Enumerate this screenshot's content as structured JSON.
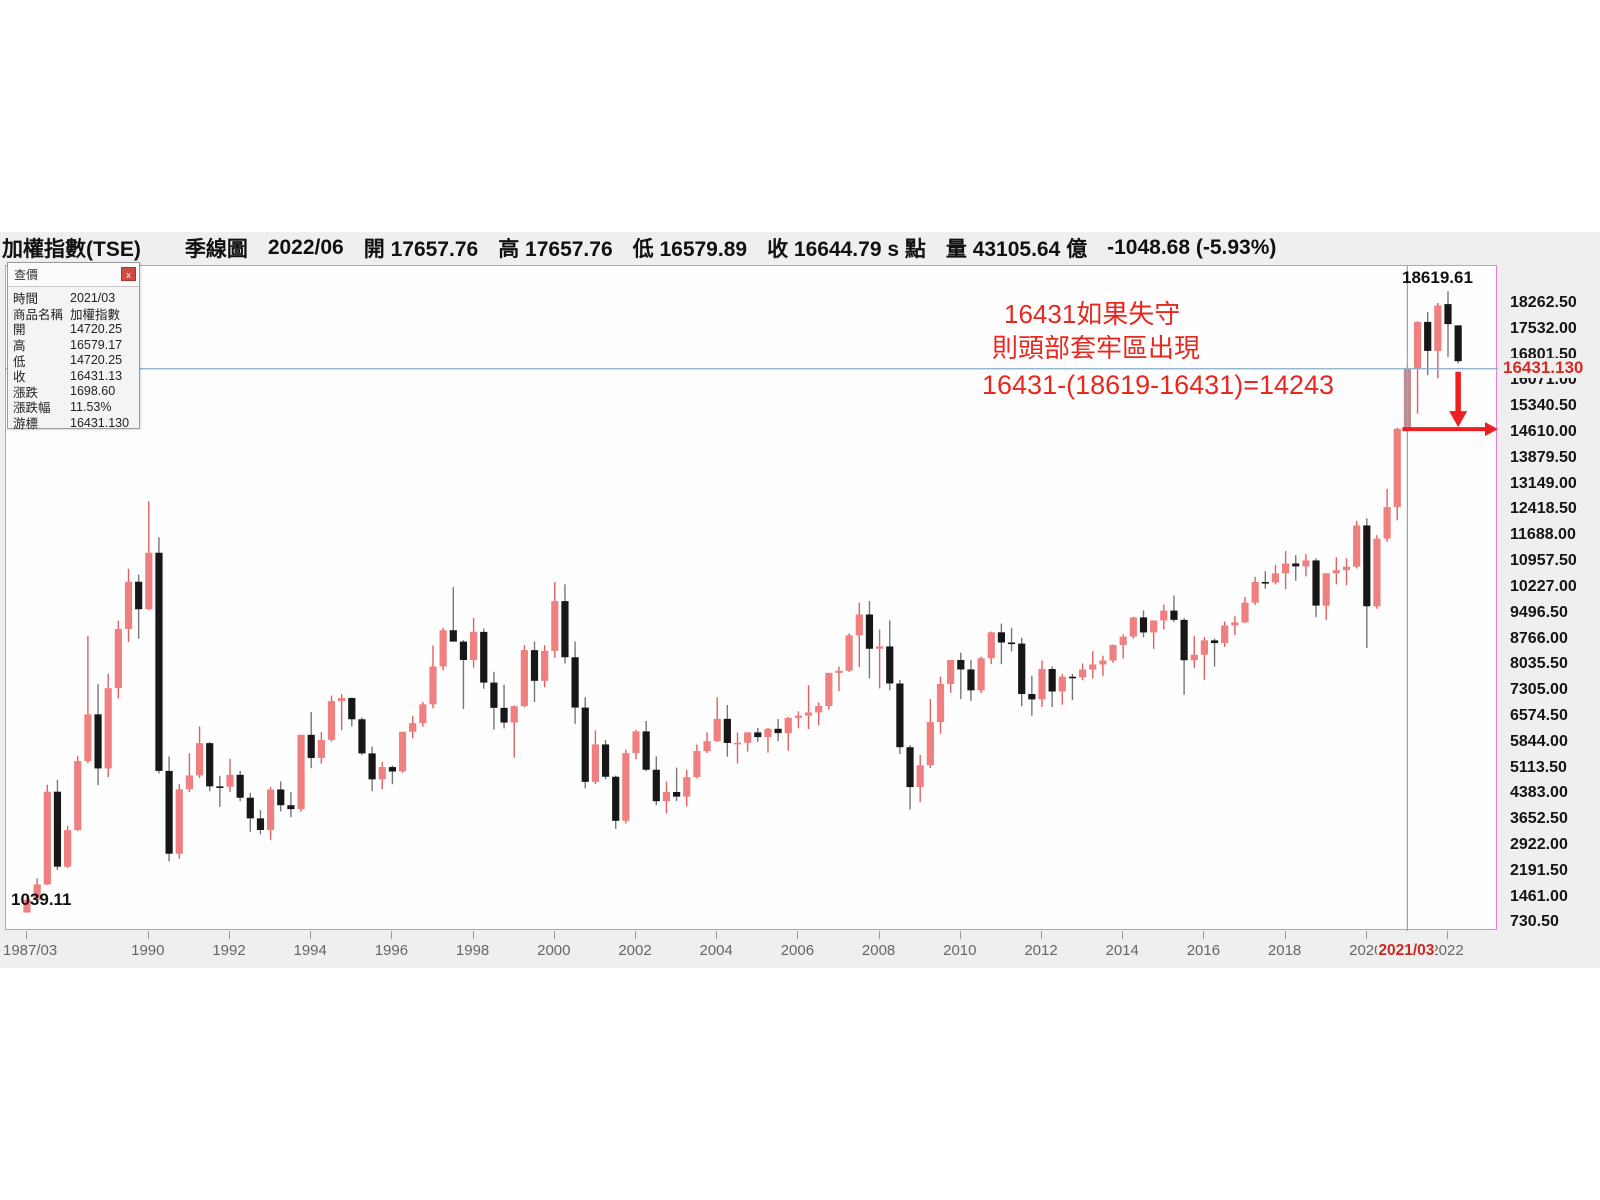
{
  "header": {
    "instrument": "加權指數(TSE)",
    "timeframe": "季線圖",
    "date": "2022/06",
    "open_label": "開",
    "open": "17657.76",
    "high_label": "高",
    "high": "17657.76",
    "low_label": "低",
    "low": "16579.89",
    "close_label": "收",
    "close": "16644.79 s 點",
    "volume_label": "量",
    "volume": "43105.64 億",
    "change": "-1048.68 (-5.93%)"
  },
  "tooltip": {
    "title": "查價",
    "close_label": "x",
    "rows": [
      {
        "label": "時間",
        "value": "2021/03"
      },
      {
        "label": "商品名稱",
        "value": "加權指數"
      },
      {
        "label": "開",
        "value": "14720.25"
      },
      {
        "label": "高",
        "value": "16579.17"
      },
      {
        "label": "低",
        "value": "14720.25"
      },
      {
        "label": "收",
        "value": "16431.13"
      },
      {
        "label": "漲跌",
        "value": "1698.60"
      },
      {
        "label": "漲跌幅",
        "value": "11.53%"
      },
      {
        "label": "游標",
        "value": "16431.130"
      }
    ]
  },
  "annotations": {
    "line1": "16431如果失守",
    "line2": "則頭部套牢區出現",
    "formula": "16431-(18619-16431)=14243",
    "peak_label": "18619.61",
    "low_label": "1039.11",
    "cursor_price": "16431.130",
    "cursor_date": "2021/03",
    "crosshair_level": 16431.13,
    "support_level": 14720.25
  },
  "colors": {
    "up": "#f08080",
    "up_wick": "#e06060",
    "down": "#171717",
    "down_wick": "#777777",
    "selected": "#c28b8d",
    "crosshair": "#84abc9",
    "annotation_red": "#e8281e",
    "arrow_red": "#ee1f1f",
    "plot_border": "#ec7cec"
  },
  "y_axis": {
    "ticks": [
      "18262.50",
      "17532.00",
      "16801.50",
      "16071.00",
      "15340.50",
      "14610.00",
      "13879.50",
      "13149.00",
      "12418.50",
      "11688.00",
      "10957.50",
      "10227.00",
      "9496.50",
      "8766.00",
      "8035.50",
      "7305.00",
      "6574.50",
      "5844.00",
      "5113.50",
      "4383.00",
      "3652.50",
      "2922.00",
      "2191.50",
      "1461.00",
      "730.50"
    ]
  },
  "x_axis": {
    "ticks": [
      {
        "label": "1987/03",
        "qi": 0
      },
      {
        "label": "1990",
        "qi": 12
      },
      {
        "label": "1992",
        "qi": 20
      },
      {
        "label": "1994",
        "qi": 28
      },
      {
        "label": "1996",
        "qi": 36
      },
      {
        "label": "1998",
        "qi": 44
      },
      {
        "label": "2000",
        "qi": 52
      },
      {
        "label": "2002",
        "qi": 60
      },
      {
        "label": "2004",
        "qi": 68
      },
      {
        "label": "2006",
        "qi": 76
      },
      {
        "label": "2008",
        "qi": 84
      },
      {
        "label": "2010",
        "qi": 92
      },
      {
        "label": "2012",
        "qi": 100
      },
      {
        "label": "2014",
        "qi": 108
      },
      {
        "label": "2016",
        "qi": 116
      },
      {
        "label": "2018",
        "qi": 124
      },
      {
        "label": "2020",
        "qi": 132
      },
      {
        "label": "2022",
        "qi": 140
      }
    ],
    "cursor_qi": 136
  },
  "chart_data": {
    "type": "candlestick",
    "title": "加權指數(TSE) 季線圖 (TAIEX quarterly)",
    "y_range": [
      518,
      19338
    ],
    "selected_index": 136,
    "columns": [
      "quarter",
      "open",
      "high",
      "low",
      "close"
    ],
    "rows": [
      [
        "1987Q1",
        1040,
        1480,
        1039.11,
        1405
      ],
      [
        "1987Q2",
        1405,
        2010,
        1380,
        1836
      ],
      [
        "1987Q3",
        1836,
        4660,
        1820,
        4460
      ],
      [
        "1987Q4",
        4460,
        4796,
        2241,
        2339
      ],
      [
        "1988Q1",
        2339,
        3500,
        2297,
        3373
      ],
      [
        "1988Q2",
        3373,
        5470,
        3340,
        5327
      ],
      [
        "1988Q3",
        5327,
        8870,
        5270,
        6650
      ],
      [
        "1988Q4",
        6650,
        7500,
        4645,
        5119
      ],
      [
        "1989Q1",
        5119,
        7800,
        4873,
        7390
      ],
      [
        "1989Q2",
        7390,
        9300,
        7100,
        9065
      ],
      [
        "1989Q3",
        9065,
        10773,
        8690,
        10403
      ],
      [
        "1989Q4",
        10403,
        10602,
        8789,
        9624
      ],
      [
        "1990Q1",
        9624,
        12682,
        9601,
        11223
      ],
      [
        "1990Q2",
        11223,
        11662,
        4980,
        5049
      ],
      [
        "1990Q3",
        5049,
        5459,
        2485,
        2705
      ],
      [
        "1990Q4",
        2705,
        4672,
        2560,
        4530
      ],
      [
        "1991Q1",
        4530,
        5550,
        4450,
        4921
      ],
      [
        "1991Q2",
        4921,
        6305,
        4850,
        5834
      ],
      [
        "1991Q3",
        5834,
        5870,
        4474,
        4611
      ],
      [
        "1991Q4",
        4611,
        4910,
        4032,
        4600
      ],
      [
        "1992Q1",
        4600,
        5391,
        4450,
        4938
      ],
      [
        "1992Q2",
        4938,
        5050,
        4190,
        4290
      ],
      [
        "1992Q3",
        4290,
        4430,
        3327,
        3705
      ],
      [
        "1992Q4",
        3705,
        3940,
        3250,
        3377
      ],
      [
        "1993Q1",
        3377,
        4600,
        3098,
        4523
      ],
      [
        "1993Q2",
        4523,
        4750,
        3900,
        4078
      ],
      [
        "1993Q3",
        4078,
        4450,
        3740,
        3967
      ],
      [
        "1993Q4",
        3967,
        6070,
        3900,
        6070
      ],
      [
        "1994Q1",
        6070,
        6720,
        5125,
        5415
      ],
      [
        "1994Q2",
        5415,
        6152,
        5254,
        5925
      ],
      [
        "1994Q3",
        5925,
        7183,
        5880,
        7025
      ],
      [
        "1994Q4",
        7025,
        7228,
        6200,
        7111
      ],
      [
        "1995Q1",
        7111,
        7129,
        6310,
        6510
      ],
      [
        "1995Q2",
        6510,
        6560,
        5500,
        5545
      ],
      [
        "1995Q3",
        5545,
        5740,
        4474,
        4810
      ],
      [
        "1995Q4",
        4810,
        5300,
        4530,
        5158
      ],
      [
        "1996Q1",
        5158,
        5200,
        4672,
        5032
      ],
      [
        "1996Q2",
        5032,
        6160,
        5000,
        6156
      ],
      [
        "1996Q3",
        6156,
        6600,
        5970,
        6403
      ],
      [
        "1996Q4",
        6403,
        7000,
        6300,
        6933
      ],
      [
        "1997Q1",
        6933,
        8600,
        6820,
        8004
      ],
      [
        "1997Q2",
        8004,
        9100,
        7893,
        9030
      ],
      [
        "1997Q3",
        9030,
        10256,
        8708,
        8708
      ],
      [
        "1997Q4",
        8708,
        8750,
        6802,
        8187
      ],
      [
        "1998Q1",
        8187,
        9378,
        7970,
        8983
      ],
      [
        "1998Q2",
        8983,
        9077,
        7375,
        7548
      ],
      [
        "1998Q3",
        7548,
        7856,
        6219,
        6833
      ],
      [
        "1998Q4",
        6833,
        7488,
        6251,
        6418
      ],
      [
        "1999Q1",
        6418,
        6900,
        5422,
        6881
      ],
      [
        "1999Q2",
        6881,
        8608,
        6850,
        8467
      ],
      [
        "1999Q3",
        8467,
        8710,
        6994,
        7598
      ],
      [
        "1999Q4",
        7598,
        8608,
        7415,
        8448
      ],
      [
        "2000Q1",
        8448,
        10393,
        8250,
        9854
      ],
      [
        "2000Q2",
        9854,
        10328,
        8089,
        8265
      ],
      [
        "2000Q3",
        8265,
        8710,
        6381,
        6841
      ],
      [
        "2000Q4",
        6841,
        7135,
        4555,
        4739
      ],
      [
        "2001Q1",
        4739,
        6198,
        4678,
        5798
      ],
      [
        "2001Q2",
        5798,
        5926,
        4812,
        4883
      ],
      [
        "2001Q3",
        4883,
        4917,
        3411,
        3636
      ],
      [
        "2001Q4",
        3636,
        5651,
        3560,
        5551
      ],
      [
        "2002Q1",
        5551,
        6212,
        5375,
        6167
      ],
      [
        "2002Q2",
        6167,
        6462,
        5043,
        5082
      ],
      [
        "2002Q3",
        5082,
        5460,
        4080,
        4191
      ],
      [
        "2002Q4",
        4191,
        4750,
        3845,
        4452
      ],
      [
        "2003Q1",
        4452,
        5141,
        4199,
        4321
      ],
      [
        "2003Q2",
        4321,
        5072,
        4044,
        4872
      ],
      [
        "2003Q3",
        4872,
        5795,
        4838,
        5611
      ],
      [
        "2003Q4",
        5611,
        6142,
        5557,
        5890
      ],
      [
        "2004Q1",
        5890,
        7135,
        5868,
        6522
      ],
      [
        "2004Q2",
        6522,
        6916,
        5450,
        5839
      ],
      [
        "2004Q3",
        5839,
        6135,
        5255,
        5845
      ],
      [
        "2004Q4",
        5845,
        6140,
        5597,
        6139
      ],
      [
        "2005Q1",
        6139,
        6265,
        5868,
        6005
      ],
      [
        "2005Q2",
        6005,
        6267,
        5565,
        6241
      ],
      [
        "2005Q3",
        6241,
        6515,
        5894,
        6118
      ],
      [
        "2005Q4",
        6118,
        6575,
        5618,
        6548
      ],
      [
        "2006Q1",
        6548,
        6734,
        6257,
        6613
      ],
      [
        "2006Q2",
        6613,
        7476,
        6232,
        6704
      ],
      [
        "2006Q3",
        6704,
        6987,
        6337,
        6885
      ],
      [
        "2006Q4",
        6885,
        7824,
        6789,
        7823
      ],
      [
        "2007Q1",
        7823,
        8000,
        7306,
        7884
      ],
      [
        "2007Q2",
        7884,
        8939,
        7850,
        8883
      ],
      [
        "2007Q3",
        8883,
        9807,
        7987,
        9476
      ],
      [
        "2007Q4",
        9476,
        9859,
        7664,
        8506
      ],
      [
        "2008Q1",
        8506,
        9049,
        7384,
        8572
      ],
      [
        "2008Q2",
        8572,
        9309,
        7329,
        7523
      ],
      [
        "2008Q3",
        7523,
        7620,
        5530,
        5719
      ],
      [
        "2008Q4",
        5719,
        5780,
        3955,
        4591
      ],
      [
        "2009Q1",
        4591,
        5500,
        4164,
        5210
      ],
      [
        "2009Q2",
        5210,
        7084,
        5130,
        6432
      ],
      [
        "2009Q3",
        6432,
        7714,
        6100,
        7509
      ],
      [
        "2009Q4",
        7509,
        8190,
        7262,
        8188
      ],
      [
        "2010Q1",
        8188,
        8395,
        7080,
        7920
      ],
      [
        "2010Q2",
        7920,
        8190,
        7032,
        7329
      ],
      [
        "2010Q3",
        7329,
        8282,
        7251,
        8237
      ],
      [
        "2010Q4",
        8237,
        8990,
        8070,
        8972
      ],
      [
        "2011Q1",
        8972,
        9220,
        8070,
        8683
      ],
      [
        "2011Q2",
        8683,
        9099,
        8433,
        8652
      ],
      [
        "2011Q3",
        8652,
        8819,
        6877,
        7225
      ],
      [
        "2011Q4",
        7225,
        7743,
        6609,
        7072
      ],
      [
        "2012Q1",
        7072,
        8170,
        6857,
        7933
      ],
      [
        "2012Q2",
        7933,
        8007,
        6857,
        7296
      ],
      [
        "2012Q3",
        7296,
        7788,
        6922,
        7715
      ],
      [
        "2012Q4",
        7715,
        7789,
        7050,
        7699
      ],
      [
        "2013Q1",
        7699,
        8089,
        7616,
        7918
      ],
      [
        "2013Q2",
        7918,
        8439,
        7663,
        8062
      ],
      [
        "2013Q3",
        8062,
        8311,
        7737,
        8173
      ],
      [
        "2013Q4",
        8173,
        8623,
        8111,
        8611
      ],
      [
        "2014Q1",
        8611,
        8916,
        8230,
        8849
      ],
      [
        "2014Q2",
        8849,
        9410,
        8791,
        9393
      ],
      [
        "2014Q3",
        9393,
        9593,
        8829,
        8967
      ],
      [
        "2014Q4",
        8967,
        9310,
        8501,
        9307
      ],
      [
        "2015Q1",
        9307,
        9751,
        9048,
        9586
      ],
      [
        "2015Q2",
        9586,
        10014,
        9259,
        9323
      ],
      [
        "2015Q3",
        9323,
        9373,
        7203,
        8181
      ],
      [
        "2015Q4",
        8181,
        8871,
        7960,
        8338
      ],
      [
        "2016Q1",
        8338,
        8840,
        7627,
        8744
      ],
      [
        "2016Q2",
        8744,
        8796,
        7999,
        8666
      ],
      [
        "2016Q3",
        8666,
        9278,
        8560,
        9166
      ],
      [
        "2016Q4",
        9166,
        9430,
        8896,
        9253
      ],
      [
        "2017Q1",
        9253,
        9976,
        9235,
        9811
      ],
      [
        "2017Q2",
        9811,
        10545,
        9745,
        10395
      ],
      [
        "2017Q3",
        10395,
        10701,
        10207,
        10383
      ],
      [
        "2017Q4",
        10383,
        10882,
        10324,
        10642
      ],
      [
        "2018Q1",
        10642,
        11270,
        10189,
        10919
      ],
      [
        "2018Q2",
        10919,
        11156,
        10431,
        10836
      ],
      [
        "2018Q3",
        10836,
        11186,
        10554,
        11006
      ],
      [
        "2018Q4",
        11006,
        11064,
        9400,
        9727
      ],
      [
        "2019Q1",
        9727,
        10641,
        9319,
        10641
      ],
      [
        "2019Q2",
        10641,
        11097,
        10330,
        10730
      ],
      [
        "2019Q3",
        10730,
        11066,
        10306,
        10829
      ],
      [
        "2019Q4",
        10829,
        12125,
        10781,
        11997
      ],
      [
        "2020Q1",
        11997,
        12197,
        8523,
        9708
      ],
      [
        "2020Q2",
        9708,
        11720,
        9636,
        11621
      ],
      [
        "2020Q3",
        11621,
        13031,
        11533,
        12515
      ],
      [
        "2020Q4",
        12515,
        14760,
        12144,
        14732
      ],
      [
        "2021Q1",
        14720.25,
        16579.17,
        14720.25,
        16431.13
      ],
      [
        "2021Q2",
        16431.13,
        17776,
        15159,
        17755.46
      ],
      [
        "2021Q3",
        17755.46,
        18034,
        16248,
        16934.77
      ],
      [
        "2021Q4",
        16934.77,
        18291,
        16162,
        18218.84
      ],
      [
        "2022Q1",
        18260,
        18619.61,
        16764,
        17693.47
      ],
      [
        "2022Q2",
        17657.76,
        17657.76,
        16579.89,
        16644.79
      ]
    ]
  }
}
